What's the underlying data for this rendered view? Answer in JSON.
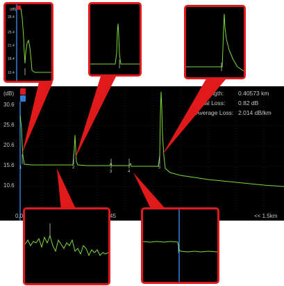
{
  "main_plot": {
    "y_unit": "(dB)",
    "y_ticks": [
      "30.6",
      "25.6",
      "20.6",
      "15.6",
      "10.6"
    ],
    "x_left": "0.0",
    "x_mid": "45",
    "x_right": "<< 1.5km",
    "trace_color": "#7ddc3a",
    "marker_labels": [
      "1",
      "2",
      "3",
      "4",
      "5"
    ]
  },
  "info": {
    "length_label": "Length:",
    "length_value": "0.40573 km",
    "total_loss_label": "otal Loss:",
    "total_loss_value": "0.82 dB",
    "avg_loss_label": "Average Loss:",
    "avg_loss_value": "2.014 dB/km"
  },
  "zoom_panels": {
    "first_panel_unit": "(dB)",
    "first_panel_ticks": [
      "28.4",
      "25.4",
      "21.4",
      "18.4",
      "10.4"
    ]
  },
  "colors": {
    "callout_red": "#e0191b",
    "marker_red": "#e0191b",
    "marker_blue": "#2f7fd9"
  }
}
